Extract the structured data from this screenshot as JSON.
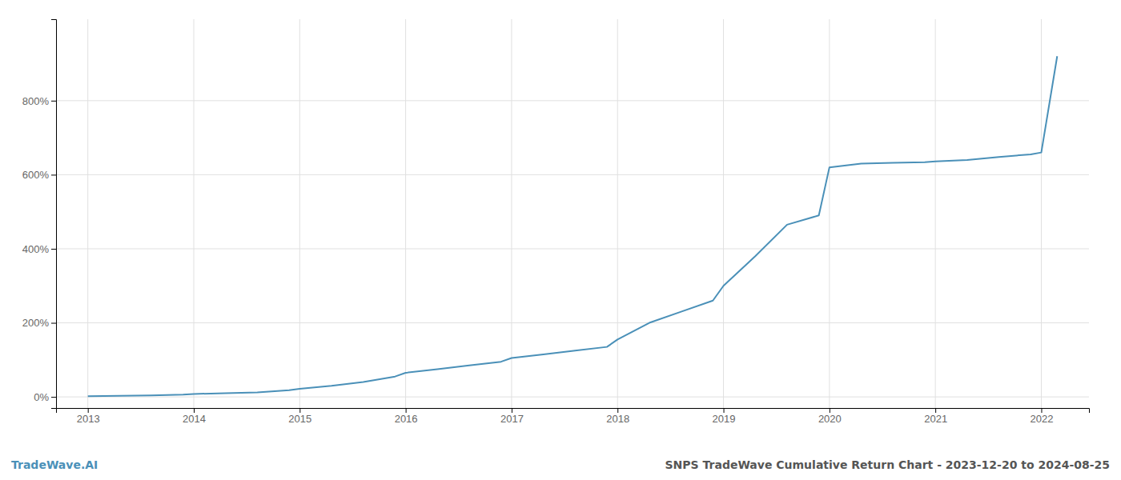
{
  "chart_data": {
    "type": "line",
    "title": "SNPS TradeWave Cumulative Return Chart - 2023-12-20 to 2024-08-25",
    "annotations": [
      "TradeWave.AI"
    ],
    "color": "#4a90b8",
    "grid": true,
    "x": [
      2013.0,
      2013.3,
      2013.6,
      2013.9,
      2014.0,
      2014.3,
      2014.6,
      2014.9,
      2015.0,
      2015.3,
      2015.6,
      2015.9,
      2016.0,
      2016.3,
      2016.6,
      2016.9,
      2017.0,
      2017.3,
      2017.6,
      2017.9,
      2018.0,
      2018.3,
      2018.6,
      2018.9,
      2019.0,
      2019.3,
      2019.6,
      2019.9,
      2020.0,
      2020.3,
      2020.6,
      2020.9,
      2021.0,
      2021.3,
      2021.6,
      2021.9,
      2022.0,
      2022.15
    ],
    "values": [
      2,
      3,
      4,
      6,
      8,
      10,
      12,
      18,
      22,
      30,
      40,
      55,
      65,
      75,
      85,
      95,
      105,
      115,
      125,
      135,
      155,
      200,
      230,
      260,
      300,
      380,
      465,
      490,
      620,
      630,
      632,
      634,
      636,
      640,
      648,
      655,
      660,
      920
    ],
    "xlim": [
      2012.7,
      2022.45
    ],
    "xticks": [
      2013,
      2014,
      2015,
      2016,
      2017,
      2018,
      2019,
      2020,
      2021,
      2022
    ],
    "ylim": [
      -30,
      1020
    ],
    "yticks": [
      {
        "value": 0,
        "label": "0%"
      },
      {
        "value": 200,
        "label": "200%"
      },
      {
        "value": 400,
        "label": "400%"
      },
      {
        "value": 600,
        "label": "600%"
      },
      {
        "value": 800,
        "label": "800%"
      }
    ]
  }
}
